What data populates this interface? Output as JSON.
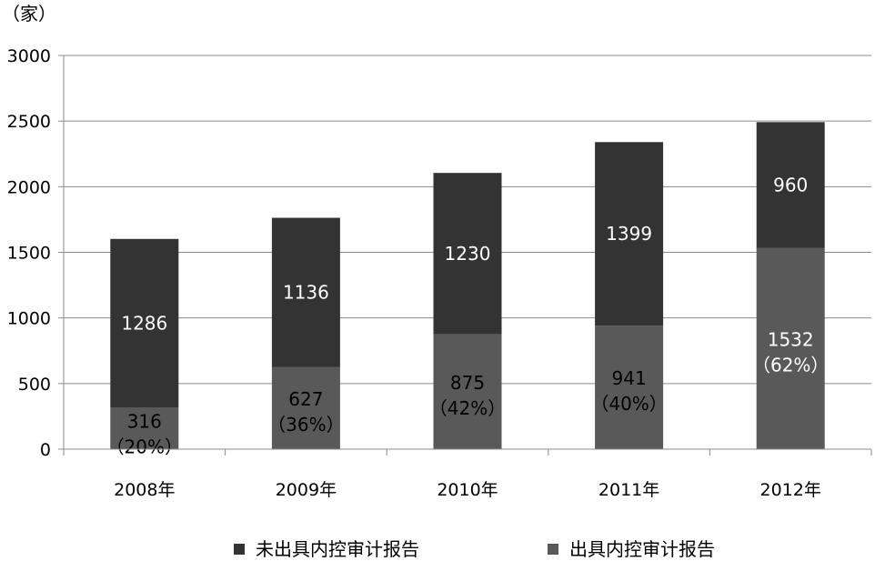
{
  "chart_data": {
    "type": "bar",
    "stacked": true,
    "unit_label": "（家）",
    "categories": [
      "2008年",
      "2009年",
      "2010年",
      "2011年",
      "2012年"
    ],
    "series": [
      {
        "name": "出具内控审计报告",
        "values": [
          316,
          627,
          875,
          941,
          1532
        ],
        "value_labels": [
          "316",
          "627",
          "875",
          "941",
          "1532"
        ],
        "percent_labels": [
          "（20%）",
          "（36%）",
          "（42%）",
          "（40%）",
          "（62%）"
        ],
        "color": "#595959"
      },
      {
        "name": "未出具内控审计报告",
        "values": [
          1286,
          1136,
          1230,
          1399,
          960
        ],
        "value_labels": [
          "1286",
          "1136",
          "1230",
          "1399",
          "960"
        ],
        "color": "#333333"
      }
    ],
    "ylim": [
      0,
      3000
    ],
    "yticks": [
      "0",
      "500",
      "1000",
      "1500",
      "2000",
      "2500",
      "3000"
    ],
    "grid": true,
    "legend_position": "bottom",
    "legend_order": [
      "未出具内控审计报告",
      "出具内控审计报告"
    ]
  }
}
